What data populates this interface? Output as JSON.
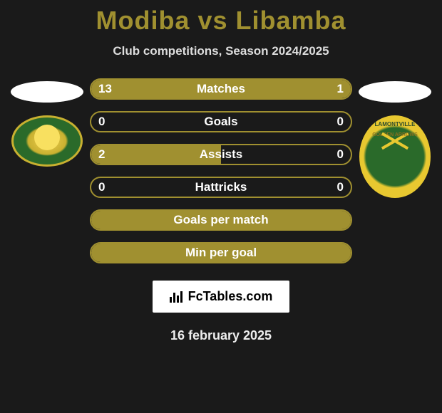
{
  "title": "Modiba vs Libamba",
  "subtitle": "Club competitions, Season 2024/2025",
  "colors": {
    "accent": "#a09030",
    "bar_border": "#a09030",
    "bar_fill": "#a09030",
    "background": "#1a1a1a",
    "text": "#ffffff",
    "flag": "#ffffff"
  },
  "bars": [
    {
      "label": "Matches",
      "left": "13",
      "right": "1",
      "left_pct": 78,
      "right_pct": 22,
      "filled": true
    },
    {
      "label": "Goals",
      "left": "0",
      "right": "0",
      "left_pct": 0,
      "right_pct": 0,
      "filled": false
    },
    {
      "label": "Assists",
      "left": "2",
      "right": "0",
      "left_pct": 50,
      "right_pct": 0,
      "filled": true
    },
    {
      "label": "Hattricks",
      "left": "0",
      "right": "0",
      "left_pct": 0,
      "right_pct": 0,
      "filled": false
    },
    {
      "label": "Goals per match",
      "left": "",
      "right": "",
      "left_pct": 100,
      "right_pct": 0,
      "filled": true,
      "no_values": true
    },
    {
      "label": "Min per goal",
      "left": "",
      "right": "",
      "left_pct": 100,
      "right_pct": 0,
      "filled": true,
      "no_values": true
    }
  ],
  "footer_brand": "FcTables.com",
  "date": "16 february 2025",
  "badge_right_text_top": "LAMONTVILLE",
  "badge_right_text_mid": "GOLDEN ARROWS"
}
